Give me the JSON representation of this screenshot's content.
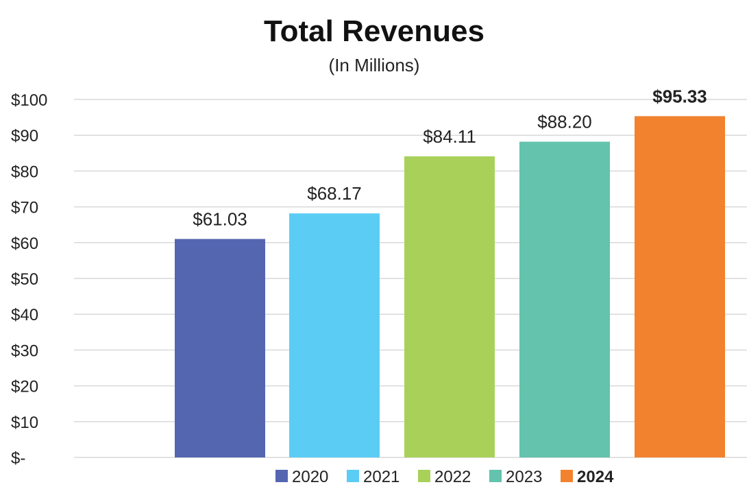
{
  "chart_data": {
    "type": "bar",
    "title": "Total Revenues",
    "subtitle": "(In Millions)",
    "xlabel": "",
    "ylabel": "",
    "ylim": [
      0,
      100
    ],
    "yticks": [
      0,
      10,
      20,
      30,
      40,
      50,
      60,
      70,
      80,
      90,
      100
    ],
    "ytick_labels": [
      "$-",
      "$10",
      "$20",
      "$30",
      "$40",
      "$50",
      "$60",
      "$70",
      "$80",
      "$90",
      "$100"
    ],
    "grid": true,
    "legend_position": "bottom",
    "categories": [
      "2020",
      "2021",
      "2022",
      "2023",
      "2024"
    ],
    "series": [
      {
        "name": "2020",
        "value": 61.03,
        "label": "$61.03",
        "color": "#5566b0",
        "bold": false
      },
      {
        "name": "2021",
        "value": 68.17,
        "label": "$68.17",
        "color": "#5bcdf4",
        "bold": false
      },
      {
        "name": "2022",
        "value": 84.11,
        "label": "$84.11",
        "color": "#a9d15a",
        "bold": false
      },
      {
        "name": "2023",
        "value": 88.2,
        "label": "$88.20",
        "color": "#63c3ad",
        "bold": false
      },
      {
        "name": "2024",
        "value": 95.33,
        "label": "$95.33",
        "color": "#f2822e",
        "bold": true
      }
    ]
  }
}
